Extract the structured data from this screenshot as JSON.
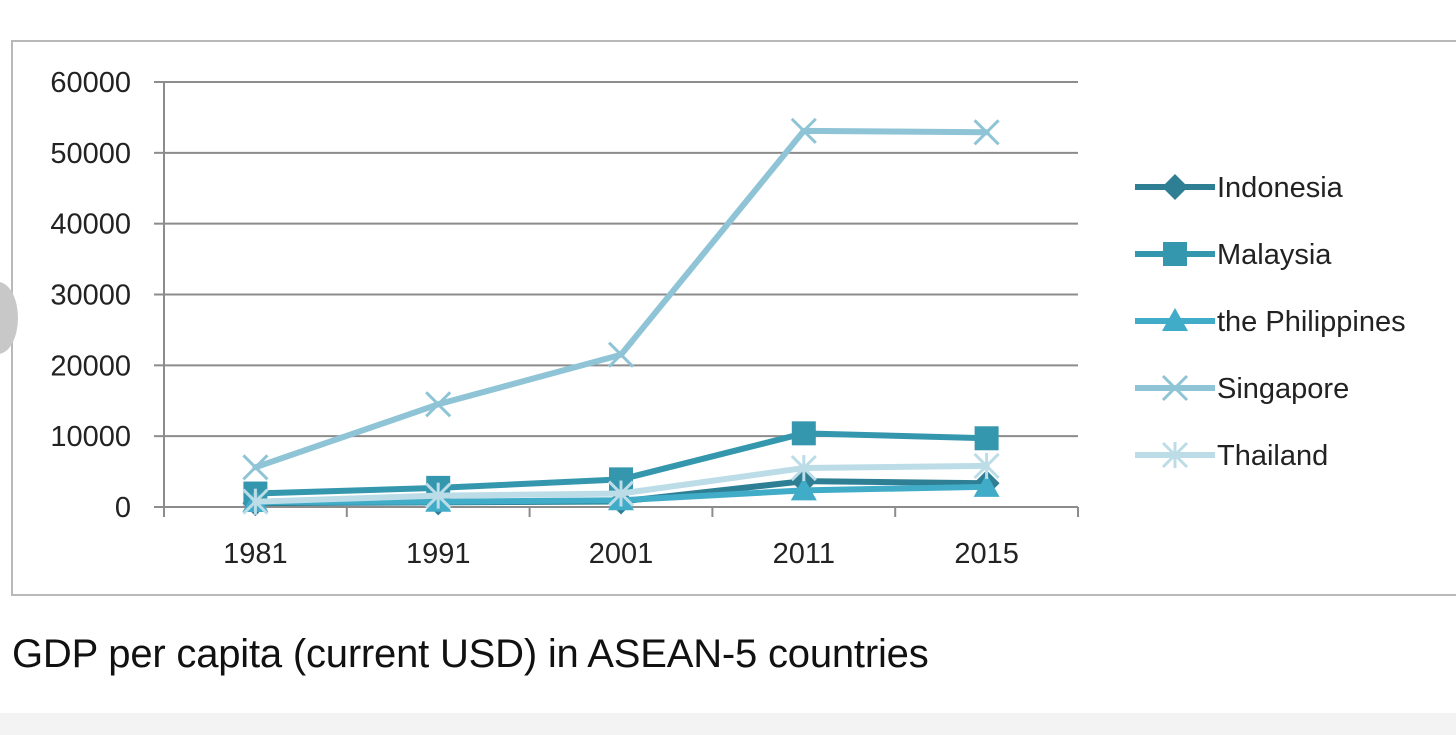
{
  "caption": "GDP per capita (current USD) in ASEAN-5 countries",
  "chart_data": {
    "type": "line",
    "title": "",
    "xlabel": "",
    "ylabel": "",
    "categories": [
      "1981",
      "1991",
      "2001",
      "2011",
      "2015"
    ],
    "ylim": [
      0,
      60000
    ],
    "yticks": [
      0,
      10000,
      20000,
      30000,
      40000,
      50000,
      60000
    ],
    "grid": true,
    "legend": "right",
    "series": [
      {
        "name": "Indonesia",
        "values": [
          550,
          650,
          780,
          3650,
          3350
        ],
        "color": "#2e7f94",
        "marker": "diamond"
      },
      {
        "name": "Malaysia",
        "values": [
          1900,
          2700,
          3900,
          10400,
          9700
        ],
        "color": "#3597ae",
        "marker": "square"
      },
      {
        "name": "the Philippines",
        "values": [
          700,
          750,
          950,
          2350,
          2850
        ],
        "color": "#40acc8",
        "marker": "triangle"
      },
      {
        "name": "Singapore",
        "values": [
          5600,
          14500,
          21500,
          53100,
          52900
        ],
        "color": "#8ec4d6",
        "marker": "x"
      },
      {
        "name": "Thailand",
        "values": [
          750,
          1600,
          1900,
          5500,
          5800
        ],
        "color": "#bcdde8",
        "marker": "asterisk"
      }
    ]
  }
}
